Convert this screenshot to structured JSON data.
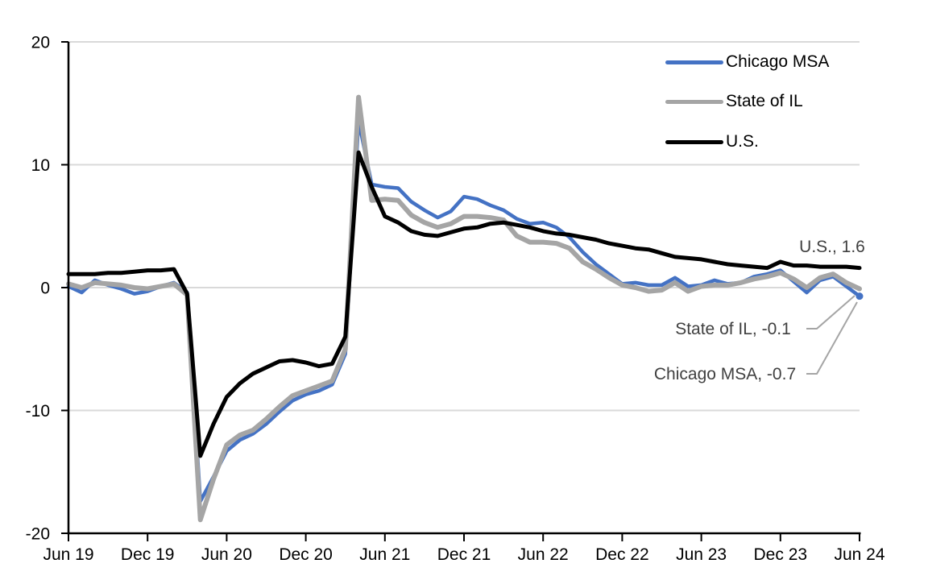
{
  "chart_data": {
    "type": "line",
    "title": "",
    "x_start": "Jun 2019",
    "x_end": "Jun 2024",
    "x_frequency": "monthly",
    "x_tick_labels": [
      "Jun 19",
      "Dec 19",
      "Jun 20",
      "Dec 20",
      "Jun 21",
      "Dec 21",
      "Jun 22",
      "Dec 22",
      "Jun 23",
      "Dec 23",
      "Jun 24"
    ],
    "y_ticks": [
      20,
      10,
      0,
      -10,
      -20
    ],
    "ylim": [
      -20,
      20
    ],
    "grid": "horizontal",
    "legend_position": "top-right",
    "series": [
      {
        "name": "Chicago MSA",
        "color": "#4472C4",
        "end_marker": true,
        "values": [
          0.1,
          -0.4,
          0.6,
          0.2,
          -0.1,
          -0.5,
          -0.3,
          0.1,
          0.4,
          -0.4,
          -17.4,
          -15.4,
          -13.3,
          -12.4,
          -11.9,
          -11.1,
          -10.1,
          -9.2,
          -8.7,
          -8.4,
          -7.9,
          -5.4,
          13.6,
          8.4,
          8.2,
          8.1,
          7.0,
          6.3,
          5.7,
          6.2,
          7.4,
          7.2,
          6.7,
          6.3,
          5.6,
          5.2,
          5.3,
          4.9,
          4.1,
          2.9,
          1.9,
          1.1,
          0.3,
          0.4,
          0.2,
          0.2,
          0.8,
          0.1,
          0.2,
          0.6,
          0.3,
          0.4,
          0.9,
          1.1,
          1.4,
          0.5,
          -0.4,
          0.6,
          0.9,
          0.1,
          -0.7
        ]
      },
      {
        "name": "State of IL",
        "color": "#A5A5A5",
        "end_marker": false,
        "values": [
          0.3,
          0.0,
          0.4,
          0.3,
          0.2,
          0.0,
          -0.1,
          0.1,
          0.3,
          -0.6,
          -18.9,
          -15.6,
          -12.8,
          -12.0,
          -11.6,
          -10.7,
          -9.7,
          -8.8,
          -8.4,
          -8.0,
          -7.6,
          -5.0,
          15.5,
          7.1,
          7.2,
          7.1,
          5.9,
          5.3,
          4.9,
          5.2,
          5.8,
          5.8,
          5.7,
          5.5,
          4.2,
          3.7,
          3.7,
          3.6,
          3.2,
          2.1,
          1.5,
          0.8,
          0.2,
          0.0,
          -0.3,
          -0.2,
          0.4,
          -0.3,
          0.1,
          0.2,
          0.2,
          0.4,
          0.7,
          0.9,
          1.2,
          0.7,
          0.0,
          0.8,
          1.1,
          0.4,
          -0.1
        ]
      },
      {
        "name": "U.S.",
        "color": "#000000",
        "end_marker": false,
        "values": [
          1.1,
          1.1,
          1.1,
          1.2,
          1.2,
          1.3,
          1.4,
          1.4,
          1.5,
          -0.5,
          -13.7,
          -11.1,
          -8.9,
          -7.8,
          -7.0,
          -6.5,
          -6.0,
          -5.9,
          -6.1,
          -6.4,
          -6.2,
          -4.0,
          11.0,
          8.2,
          5.8,
          5.3,
          4.6,
          4.3,
          4.2,
          4.5,
          4.8,
          4.9,
          5.2,
          5.3,
          5.1,
          4.9,
          4.6,
          4.4,
          4.3,
          4.1,
          3.9,
          3.6,
          3.4,
          3.2,
          3.1,
          2.8,
          2.5,
          2.4,
          2.3,
          2.1,
          1.9,
          1.8,
          1.7,
          1.6,
          2.1,
          1.8,
          1.8,
          1.7,
          1.7,
          1.7,
          1.6
        ]
      }
    ]
  },
  "legend": {
    "items": [
      {
        "label": "Chicago MSA"
      },
      {
        "label": "State of IL"
      },
      {
        "label": "U.S."
      }
    ]
  },
  "annotations": {
    "us": {
      "text": "U.S., 1.6"
    },
    "state_il": {
      "text": "State of IL, -0.1"
    },
    "chicago": {
      "text": "Chicago MSA, -0.7"
    }
  },
  "colors": {
    "background": "#FFFFFF",
    "gridline": "#D9D9D9",
    "axis": "#000000",
    "tick_label": "#000000",
    "annotation_text": "#404040",
    "leader_line": "#A5A5A5"
  }
}
